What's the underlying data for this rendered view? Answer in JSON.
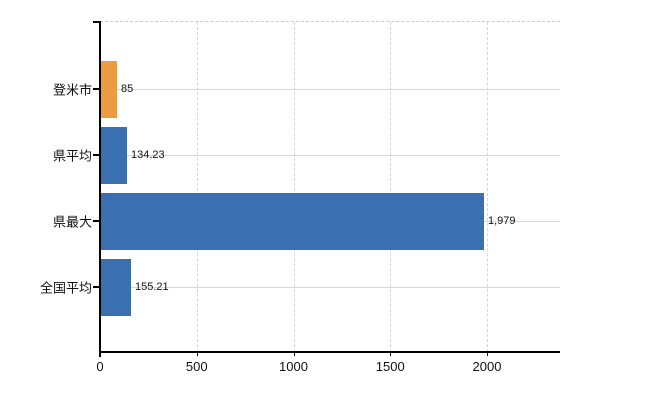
{
  "chart_data": {
    "type": "bar",
    "orientation": "horizontal",
    "title": "",
    "xlabel": "",
    "ylabel": "",
    "categories": [
      "登米市",
      "県平均",
      "県最大",
      "全国平均"
    ],
    "values": [
      85,
      134.23,
      1979,
      155.21
    ],
    "value_labels": [
      "85",
      "134.23",
      "1,979",
      "155.21"
    ],
    "series_colors": [
      "#EC9B43",
      "#3A6FB2",
      "#3A6FB2",
      "#3A6FB2"
    ],
    "x_ticks": [
      0,
      500,
      1000,
      1500,
      2000
    ],
    "x_tick_labels": [
      "0",
      "500",
      "1000",
      "1500",
      "2000"
    ],
    "xlim": [
      0,
      2380
    ],
    "grid": true,
    "legend_position": "none"
  },
  "colors": {
    "background": "#ffffff",
    "axis": "#000000",
    "gridline": "#d6d6d6",
    "top_border": "#cccccc",
    "bar_blue": "#3A6FB2",
    "bar_orange": "#EC9B43",
    "text": "#111111"
  }
}
